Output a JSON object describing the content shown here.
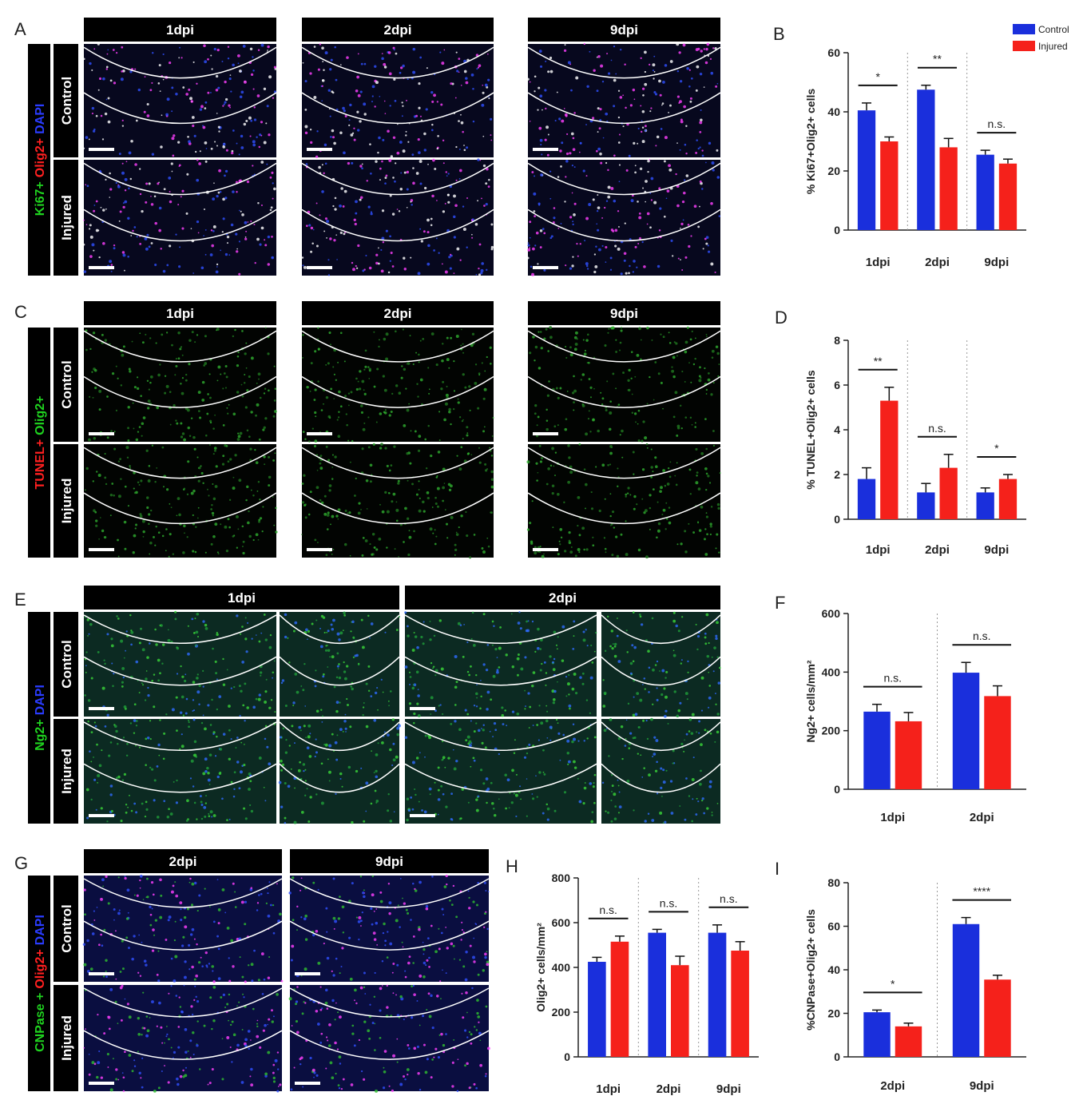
{
  "panels": [
    {
      "letter": "A",
      "stain": [
        {
          "text": "Ki67+",
          "color": "#1fd21f"
        },
        {
          "text": "Olig2+",
          "color": "#ff2020"
        },
        {
          "text": "DAPI",
          "color": "#2a3cff"
        }
      ],
      "columns": [
        "1dpi",
        "2dpi",
        "9dpi"
      ],
      "rows": [
        "Control",
        "Injured"
      ]
    },
    {
      "letter": "C",
      "stain": [
        {
          "text": "TUNEL+",
          "color": "#ff2020"
        },
        {
          "text": "Olig2+",
          "color": "#1fd21f"
        }
      ],
      "columns": [
        "1dpi",
        "2dpi",
        "9dpi"
      ],
      "rows": [
        "Control",
        "Injured"
      ]
    },
    {
      "letter": "E",
      "stain": [
        {
          "text": "Ng2+",
          "color": "#1fd21f"
        },
        {
          "text": "DAPI",
          "color": "#2a3cff"
        }
      ],
      "columns": [
        "1dpi",
        "2dpi"
      ],
      "rows": [
        "Control",
        "Injured"
      ]
    },
    {
      "letter": "G",
      "stain": [
        {
          "text": "CNPase +",
          "color": "#1fd21f"
        },
        {
          "text": "Olig2+",
          "color": "#ff2020"
        },
        {
          "text": "DAPI",
          "color": "#2a3cff"
        }
      ],
      "columns": [
        "2dpi",
        "9dpi"
      ],
      "rows": [
        "Control",
        "Injured"
      ]
    }
  ],
  "chart_data": [
    {
      "letter": "B",
      "type": "bar",
      "y_label": "% Ki67+Olig2+ cells",
      "categories": [
        "1dpi",
        "2dpi",
        "9dpi"
      ],
      "series": [
        {
          "name": "Control",
          "color": "#1a2fdc",
          "values": [
            40.5,
            47.5,
            25.5
          ],
          "errors": [
            2.5,
            1.5,
            1.5
          ]
        },
        {
          "name": "Injured",
          "color": "#f5211b",
          "values": [
            30,
            28,
            22.5
          ],
          "errors": [
            1.5,
            3,
            1.5
          ]
        }
      ],
      "significance": [
        "*",
        "**",
        "n.s."
      ],
      "ylim": [
        0,
        60
      ],
      "yticks": [
        0,
        20,
        40,
        60
      ],
      "legend": "top-right"
    },
    {
      "letter": "D",
      "type": "bar",
      "y_label": "% TUNEL+Olig2+ cells",
      "categories": [
        "1dpi",
        "2dpi",
        "9dpi"
      ],
      "series": [
        {
          "name": "Control",
          "color": "#1a2fdc",
          "values": [
            1.8,
            1.2,
            1.2
          ],
          "errors": [
            0.5,
            0.4,
            0.2
          ]
        },
        {
          "name": "Injured",
          "color": "#f5211b",
          "values": [
            5.3,
            2.3,
            1.8
          ],
          "errors": [
            0.6,
            0.6,
            0.2
          ]
        }
      ],
      "significance": [
        "**",
        "n.s.",
        "*"
      ],
      "ylim": [
        0,
        8
      ],
      "yticks": [
        0,
        2,
        4,
        6,
        8
      ]
    },
    {
      "letter": "F",
      "type": "bar",
      "y_label": "Ng2+ cells/mm²",
      "categories": [
        "1dpi",
        "2dpi"
      ],
      "series": [
        {
          "name": "Control",
          "color": "#1a2fdc",
          "values": [
            265,
            398
          ],
          "errors": [
            25,
            35
          ]
        },
        {
          "name": "Injured",
          "color": "#f5211b",
          "values": [
            232,
            318
          ],
          "errors": [
            30,
            35
          ]
        }
      ],
      "significance": [
        "n.s.",
        "n.s."
      ],
      "ylim": [
        0,
        600
      ],
      "yticks": [
        0,
        200,
        400,
        600
      ]
    },
    {
      "letter": "H",
      "type": "bar",
      "y_label": "Olig2+ cells/mm²",
      "categories": [
        "1dpi",
        "2dpi",
        "9dpi"
      ],
      "series": [
        {
          "name": "Control",
          "color": "#1a2fdc",
          "values": [
            425,
            555,
            555
          ],
          "errors": [
            20,
            15,
            35
          ]
        },
        {
          "name": "Injured",
          "color": "#f5211b",
          "values": [
            515,
            410,
            475
          ],
          "errors": [
            25,
            40,
            40
          ]
        }
      ],
      "significance": [
        "n.s.",
        "n.s.",
        "n.s."
      ],
      "ylim": [
        0,
        800
      ],
      "yticks": [
        0,
        200,
        400,
        600,
        800
      ]
    },
    {
      "letter": "I",
      "type": "bar",
      "y_label": "%CNPase+Olig2+ cells",
      "categories": [
        "2dpi",
        "9dpi"
      ],
      "series": [
        {
          "name": "Control",
          "color": "#1a2fdc",
          "values": [
            20.5,
            61
          ],
          "errors": [
            1,
            3
          ]
        },
        {
          "name": "Injured",
          "color": "#f5211b",
          "values": [
            14,
            35.5
          ],
          "errors": [
            1.5,
            2
          ]
        }
      ],
      "significance": [
        "*",
        "****"
      ],
      "ylim": [
        0,
        80
      ],
      "yticks": [
        0,
        20,
        40,
        60,
        80
      ]
    }
  ]
}
